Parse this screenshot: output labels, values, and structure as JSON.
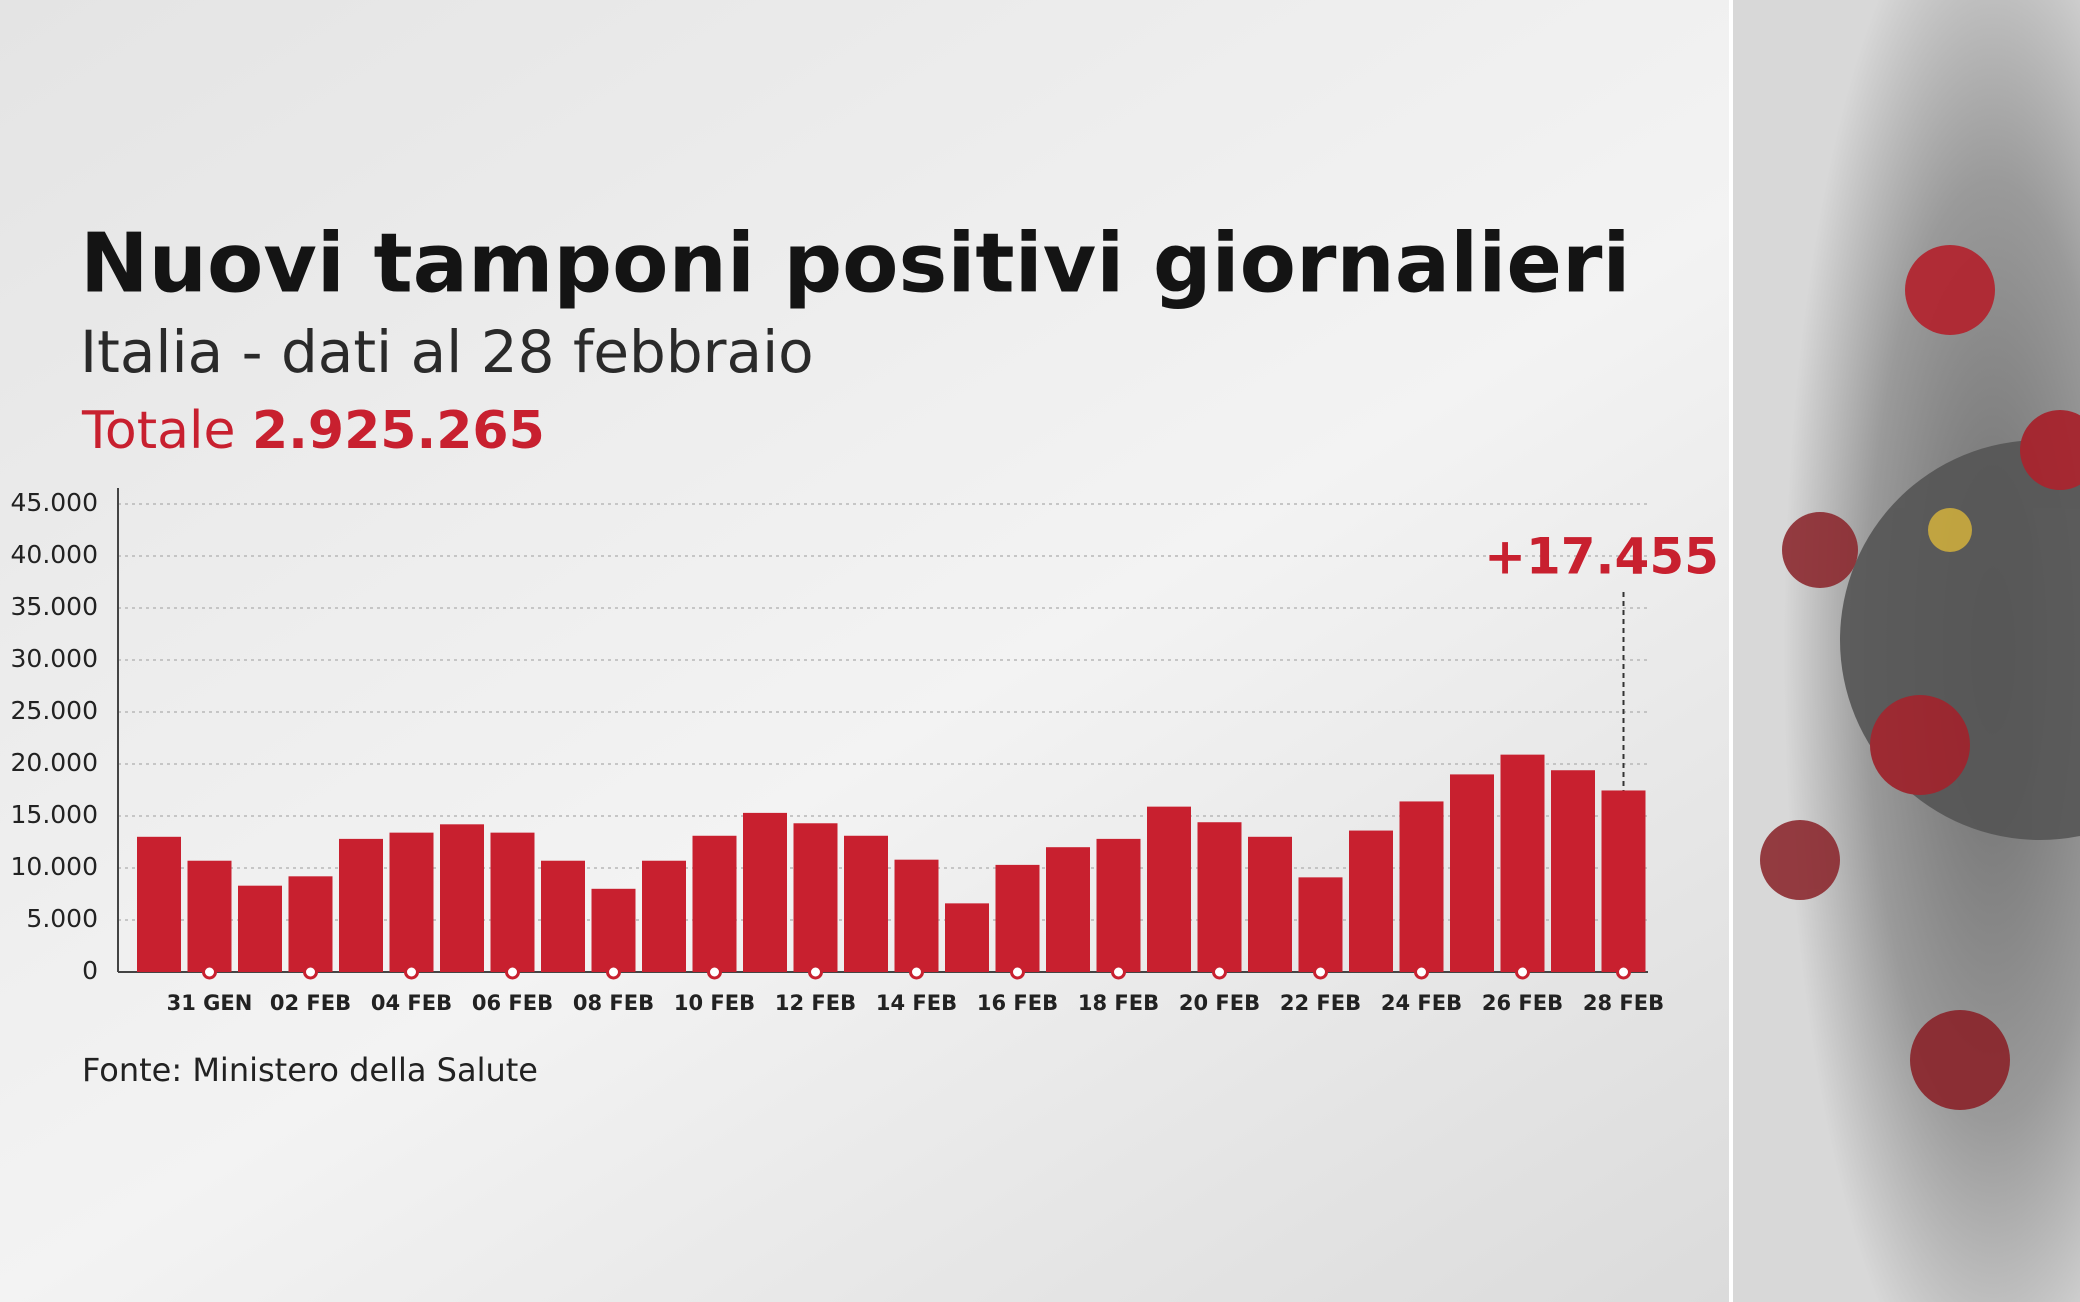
{
  "chart_data": {
    "type": "bar",
    "title": "Nuovi tamponi positivi giornalieri",
    "subtitle": "Italia - dati al 28 febbraio",
    "total_label": "Totale",
    "total_value": "2.925.265",
    "source": "Fonte: Ministero della Salute",
    "categories": [
      null,
      "31 GEN",
      null,
      "02 FEB",
      null,
      "04 FEB",
      null,
      "06 FEB",
      null,
      "08 FEB",
      null,
      "10 FEB",
      null,
      "12 FEB",
      null,
      "14 FEB",
      null,
      "16 FEB",
      null,
      "18 FEB",
      null,
      "20 FEB",
      null,
      "22 FEB",
      null,
      "24 FEB",
      null,
      "26 FEB",
      null,
      "28 FEB"
    ],
    "values": [
      13000,
      10700,
      8300,
      9200,
      12800,
      13400,
      14200,
      13400,
      10700,
      8000,
      10700,
      13100,
      15300,
      14300,
      13100,
      10800,
      6600,
      10300,
      12000,
      12800,
      15900,
      14400,
      13000,
      9100,
      13600,
      16400,
      19000,
      20900,
      19400,
      17455
    ],
    "value_labels": [
      null,
      null,
      null,
      null,
      null,
      null,
      null,
      null,
      null,
      null,
      null,
      null,
      null,
      null,
      null,
      null,
      null,
      null,
      null,
      null,
      null,
      null,
      null,
      null,
      null,
      null,
      null,
      null,
      null,
      "+17.455"
    ],
    "color": "#c8202f",
    "ylim": [
      0,
      45000
    ],
    "yticks": [
      0,
      {
        "value": 5000,
        "label": "5.000"
      },
      {
        "value": 10000,
        "label": "10.000"
      },
      {
        "value": 15000,
        "label": "15.000"
      },
      {
        "value": 20000,
        "label": "20.000"
      },
      {
        "value": 25000,
        "label": "25.000"
      },
      {
        "value": 30000,
        "label": "30.000"
      },
      {
        "value": 35000,
        "label": "35.000"
      },
      {
        "value": 40000,
        "label": "40.000"
      },
      {
        "value": 45000,
        "label": "45.000"
      }
    ],
    "grid": true
  }
}
